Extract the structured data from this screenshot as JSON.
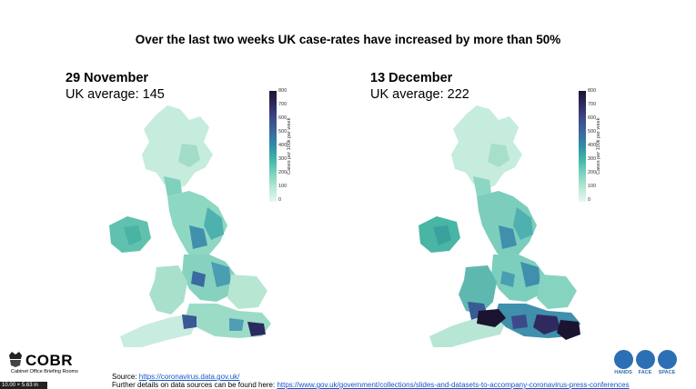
{
  "headline": "Over the last two weeks UK case-rates have increased by more than 50%",
  "panels": [
    {
      "date": "29 November",
      "average": "UK average: 145"
    },
    {
      "date": "13 December",
      "average": "UK average: 222"
    }
  ],
  "colorbar": {
    "ticks": [
      "800",
      "700",
      "600",
      "500",
      "400",
      "300",
      "200",
      "100",
      "0"
    ],
    "label": "Cases per 100k per week"
  },
  "footer": {
    "source_prefix": "Source: ",
    "source_link": "https://coronavirus.data.gov.uk/",
    "details_prefix": "Further details on data sources can be found here: ",
    "details_link": "https://www.gov.uk/government/collections/slides-and-datasets-to-accompany-coronavirus-press-conferences"
  },
  "logo": {
    "title": "COBR",
    "subtitle": "Cabinet Office Briefing Rooms"
  },
  "campaign": [
    "HANDS",
    "FACE",
    "SPACE"
  ],
  "size_tag": "10.00 × 5.63 in",
  "colors": {
    "low": "#e7f7ef",
    "mid": "#41b6a9",
    "high": "#1b1430",
    "campaign_blue": "#2d6fb4"
  }
}
